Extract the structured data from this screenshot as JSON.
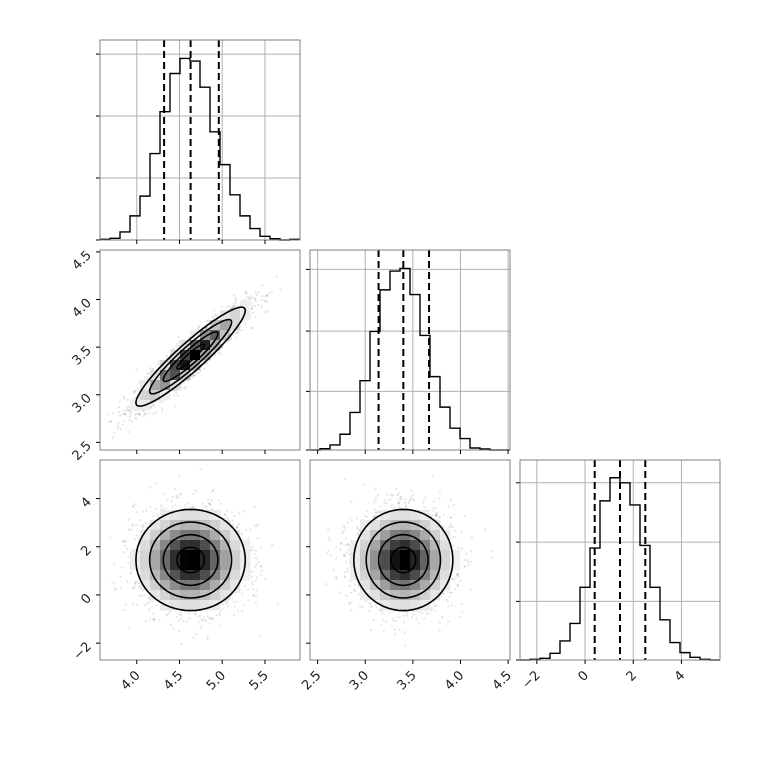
{
  "chart_data": {
    "type": "corner",
    "parameters": [
      {
        "lim": [
          3.57,
          5.91
        ],
        "ticks": [
          4.0,
          4.5,
          5.0,
          5.5
        ],
        "tick_labels": [
          "4.0",
          "4.5",
          "5.0",
          "5.5"
        ]
      },
      {
        "lim": [
          2.42,
          4.52
        ],
        "ticks": [
          2.5,
          3.0,
          3.5,
          4.0,
          4.5
        ],
        "tick_labels": [
          "2.5",
          "3.0",
          "3.5",
          "4.0",
          "4.5"
        ]
      },
      {
        "lim": [
          -2.7,
          5.6
        ],
        "ticks": [
          -2,
          0,
          2,
          4
        ],
        "tick_labels": [
          "−2",
          "0",
          "2",
          "4"
        ]
      }
    ],
    "histograms": [
      {
        "param": 0,
        "counts": [
          2,
          5,
          24,
          72,
          131,
          258,
          383,
          497,
          542,
          534,
          456,
          323,
          225,
          135,
          72,
          34,
          11,
          4,
          0,
          2
        ],
        "ylim": [
          0,
          597
        ],
        "yticks": [
          0,
          185,
          370,
          555
        ],
        "quantiles": [
          4.32,
          4.63,
          4.96
        ]
      },
      {
        "param": 1,
        "counts": [
          0,
          4,
          15,
          47,
          112,
          207,
          354,
          478,
          534,
          542,
          464,
          342,
          219,
          128,
          65,
          34,
          6,
          3,
          0,
          0
        ],
        "ylim": [
          0,
          597
        ],
        "yticks": [
          0,
          175,
          355,
          539
        ],
        "quantiles": [
          3.14,
          3.4,
          3.67
        ]
      },
      {
        "param": 2,
        "counts": [
          0,
          2,
          5,
          20,
          57,
          109,
          217,
          334,
          475,
          544,
          529,
          463,
          342,
          217,
          120,
          52,
          22,
          8,
          2,
          0
        ],
        "ylim": [
          0,
          597
        ],
        "yticks": [
          0,
          175,
          352,
          529
        ],
        "quantiles": [
          0.4,
          1.45,
          2.5
        ]
      }
    ],
    "scatter": [
      {
        "x_param": 0,
        "y_param": 1,
        "mean": [
          4.63,
          3.4
        ],
        "std": [
          0.32,
          0.26
        ],
        "correlation": 0.93
      },
      {
        "x_param": 0,
        "y_param": 2,
        "mean": [
          4.63,
          1.45
        ],
        "std": [
          0.32,
          1.05
        ],
        "correlation": 0.0
      },
      {
        "x_param": 1,
        "y_param": 2,
        "mean": [
          3.4,
          1.45
        ],
        "std": [
          0.26,
          1.05
        ],
        "correlation": 0.0
      }
    ],
    "contour_levels_sigma": [
      0.5,
      1.0,
      1.5,
      2.0
    ],
    "grid": "on (diagonal histograms only)",
    "colors": {
      "line": "#000000",
      "grid": "#b0b0b0",
      "frame": "#808080",
      "points": "#000000"
    }
  }
}
